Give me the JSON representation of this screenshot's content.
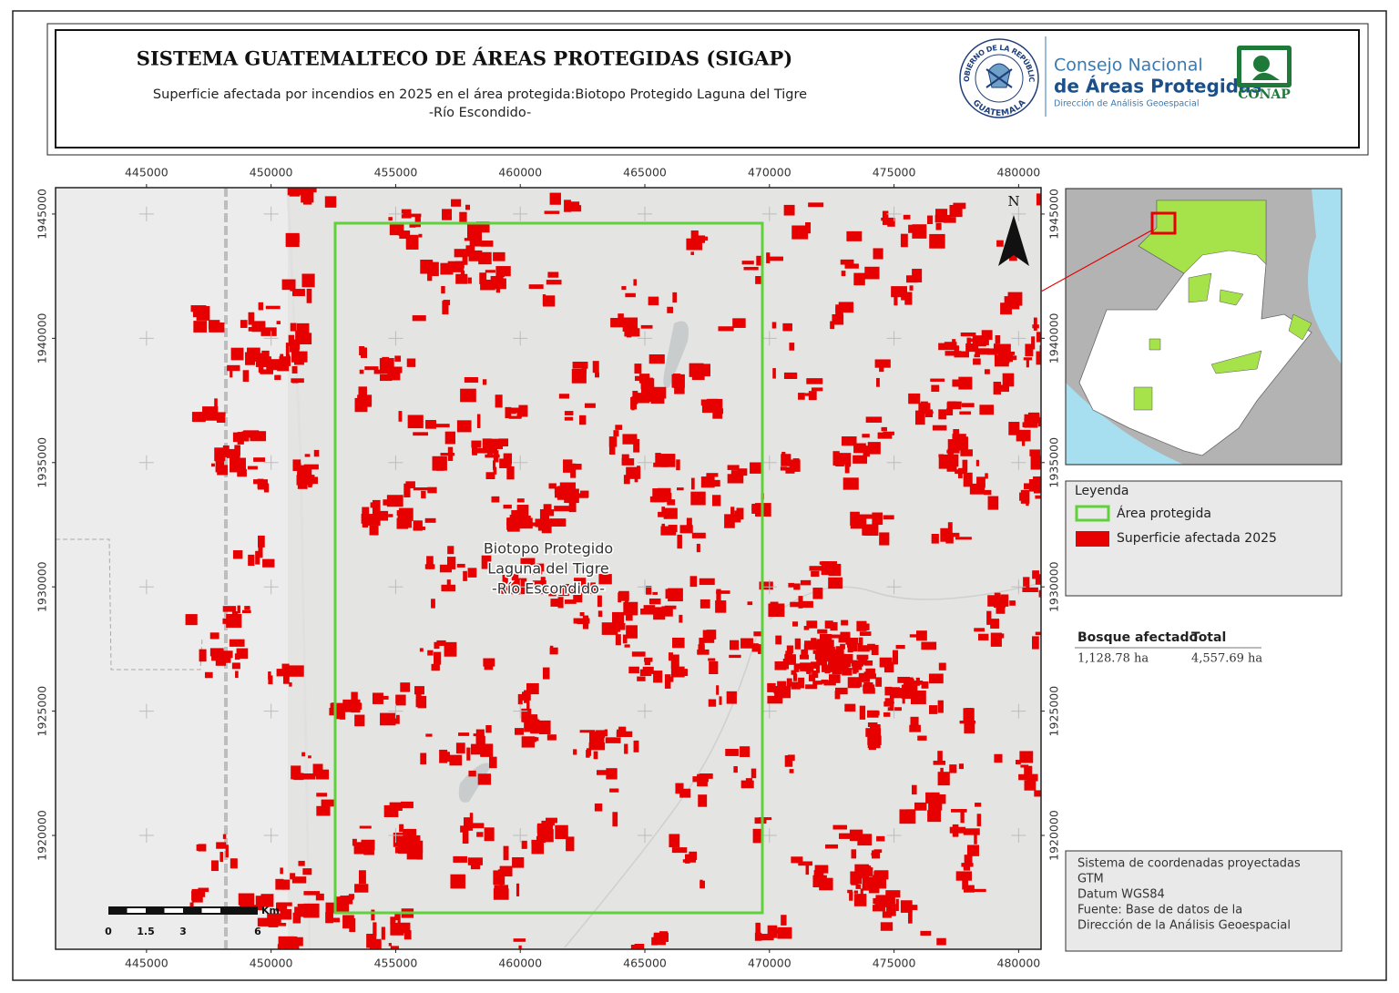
{
  "header": {
    "title": "SISTEMA GUATEMALTECO DE ÁREAS PROTEGIDAS  (SIGAP)",
    "subtitle_lines": [
      "Superficie afectada por incendios en 2025 en el área protegida:Biotopo Protegido Laguna del Tigre",
      "-Río Escondido-"
    ],
    "seal_top": "GOBIERNO DE LA REPÚBLICA",
    "seal_bottom": "GUATEMALA",
    "org_line1": "Consejo Nacional",
    "org_line2": "de Áreas Protegidas",
    "org_line3": "Dirección de Análisis Geoespacial",
    "conap": "CONAP"
  },
  "map": {
    "xlim": [
      441350,
      480900
    ],
    "ylim": [
      1915420,
      1946060
    ],
    "xticks": [
      445000,
      450000,
      455000,
      460000,
      465000,
      470000,
      475000,
      480000
    ],
    "yticks": [
      1945000,
      1940000,
      1935000,
      1930000,
      1925000,
      1920000
    ],
    "label_lines": [
      "Biotopo Protegido",
      "Laguna del Tigre",
      "-Río Escondido-"
    ],
    "north": "N",
    "scale_bar": {
      "unit": "Km",
      "ticks": [
        0,
        1.5,
        3,
        6
      ]
    }
  },
  "legend": {
    "title": "Leyenda",
    "items": [
      {
        "name": "Área protegida",
        "color": "#5fd13b"
      },
      {
        "name": "Superficie afectada 2025",
        "color": "#e60000"
      }
    ]
  },
  "stats": {
    "headers": [
      "Bosque afectado",
      "Total"
    ],
    "values": [
      "1,128.78 ha",
      "4,557.69 ha"
    ]
  },
  "info": {
    "lines": [
      "Sistema de coordenadas proyectadas",
      "GTM",
      "Datum WGS84",
      "Fuente: Base de datos de la",
      "Dirección de la Análisis Geoespacial"
    ]
  }
}
